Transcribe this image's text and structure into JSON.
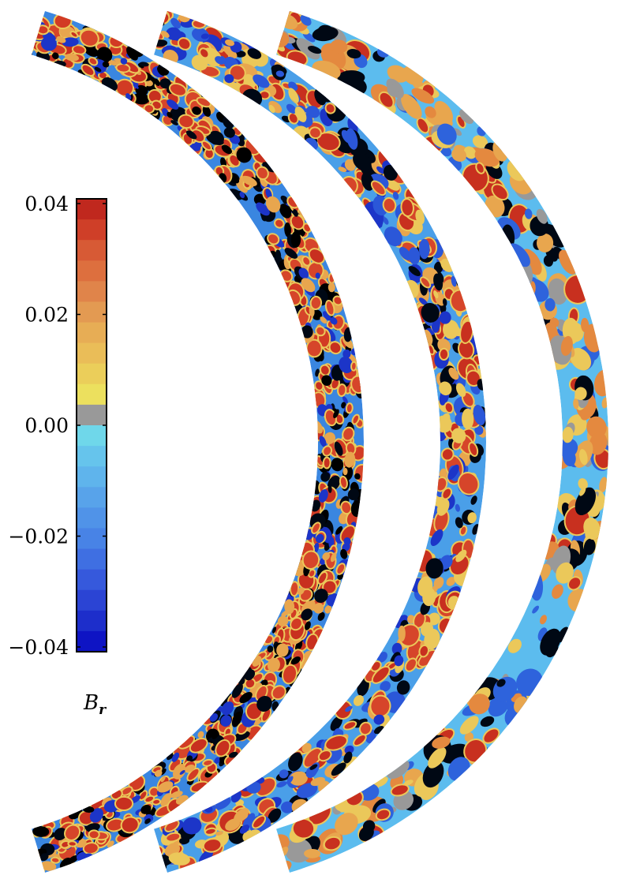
{
  "chart_data": {
    "type": "heatmap",
    "title": "",
    "description_panels": 3,
    "colorbar": {
      "label": "B",
      "label_subscript": "r",
      "range": [
        -0.04,
        0.04
      ],
      "ticks": [
        "0.04",
        "0.02",
        "0.00",
        "−0.02",
        "−0.04"
      ],
      "tick_values": [
        0.04,
        0.02,
        0.0,
        -0.02,
        -0.04
      ],
      "colors": [
        "#c0281e",
        "#cf3f28",
        "#d75a35",
        "#dd6f3e",
        "#e0844a",
        "#e39a52",
        "#e7ad55",
        "#eabd58",
        "#ebce5a",
        "#ece05e",
        "#999999",
        "#6fd7ea",
        "#66c4ec",
        "#5fb4ec",
        "#58a3ea",
        "#5093e8",
        "#4883e6",
        "#3f6fe2",
        "#3659dc",
        "#2b44d4",
        "#1d2ecb",
        "#0e14c4"
      ]
    },
    "panels": [
      {
        "name": "left",
        "density": "high",
        "background": "#3a86e0"
      },
      {
        "name": "middle",
        "density": "medium",
        "background": "#4a9fe8"
      },
      {
        "name": "right",
        "density": "low",
        "background": "#5cbcee"
      }
    ]
  }
}
